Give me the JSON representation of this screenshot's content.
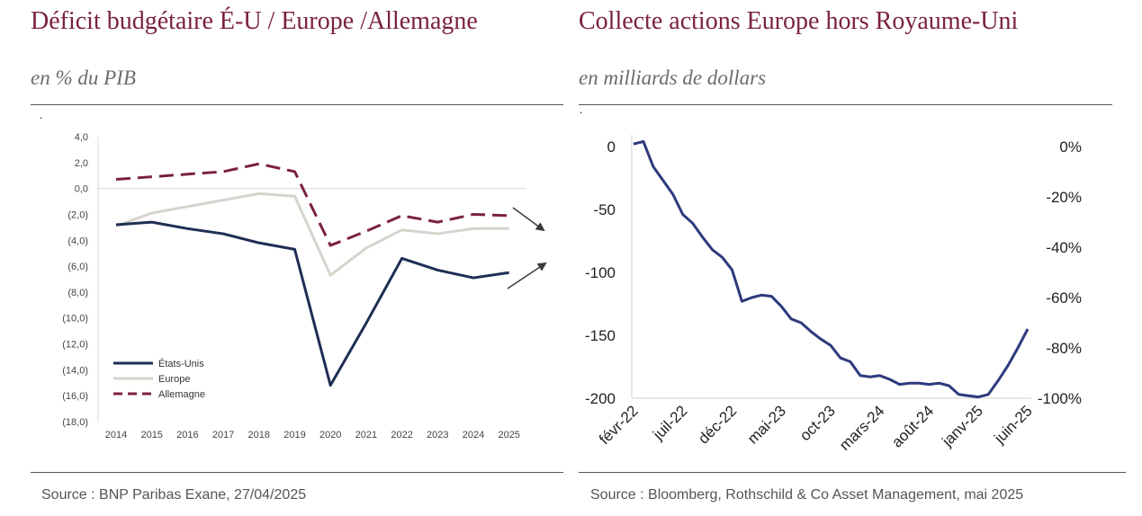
{
  "left": {
    "title": "Déficit budgétaire É-U / Europe /Allemagne",
    "subtitle": "en % du PIB",
    "source": "Source : BNP Paribas Exane, 27/04/2025",
    "chart_data": {
      "type": "line",
      "title": "Déficit budgétaire É-U / Europe /Allemagne",
      "subtitle": "en % du PIB",
      "x": [
        "2014",
        "2015",
        "2016",
        "2017",
        "2018",
        "2019",
        "2020",
        "2021",
        "2022",
        "2023",
        "2024",
        "2025"
      ],
      "yticks": [
        "4,0",
        "2,0",
        "0,0",
        "(2,0)",
        "(4,0)",
        "(6,0)",
        "(8,0)",
        "(10,0)",
        "(12,0)",
        "(14,0)",
        "(16,0)",
        "(18,0)"
      ],
      "ylim": [
        -18,
        4
      ],
      "legend_position": "bottom-left",
      "grid": false,
      "series": [
        {
          "name": "États-Unis",
          "color": "#1e2e54",
          "dash": false,
          "values": [
            -2.8,
            -2.6,
            -3.1,
            -3.5,
            -4.2,
            -4.7,
            -15.2,
            -10.4,
            -5.4,
            -6.3,
            -6.9,
            -6.5
          ]
        },
        {
          "name": "Europe",
          "color": "#d7d3cd",
          "dash": false,
          "values": [
            -2.9,
            -1.9,
            -1.4,
            -0.9,
            -0.4,
            -0.6,
            -6.7,
            -4.6,
            -3.2,
            -3.5,
            -3.1,
            -3.1
          ]
        },
        {
          "name": "Allemagne",
          "color": "#7a2140",
          "dash": true,
          "values": [
            0.7,
            0.9,
            1.1,
            1.3,
            1.9,
            1.3,
            -4.4,
            -3.3,
            -2.1,
            -2.6,
            -2.0,
            -2.1
          ]
        }
      ]
    }
  },
  "right": {
    "title": "Collecte actions Europe hors Royaume-Uni",
    "subtitle": "en milliards de dollars",
    "source": "Source : Bloomberg, Rothschild & Co Asset Management, mai 2025",
    "chart_data": {
      "type": "line",
      "title": "Collecte actions Europe hors Royaume-Uni",
      "subtitle": "en milliards de dollars",
      "x_labels": [
        "févr-22",
        "juil-22",
        "déc-22",
        "mai-23",
        "oct-23",
        "mars-24",
        "août-24",
        "janv-25",
        "juin-25"
      ],
      "ylim": [
        -200,
        0
      ],
      "yticks_left": [
        "0",
        "-50",
        "-100",
        "-150",
        "-200"
      ],
      "yticks_right": [
        "0%",
        "-20%",
        "-40%",
        "-60%",
        "-80%",
        "-100%"
      ],
      "grid": false,
      "series": [
        {
          "color": "#2e3a7d",
          "values": [
            2,
            4,
            -16,
            -27,
            -38,
            -54,
            -61,
            -72,
            -82,
            -88,
            -98,
            -123,
            -120,
            -118,
            -119,
            -127,
            -137,
            -140,
            -147,
            -153,
            -158,
            -168,
            -171,
            -182,
            -183,
            -182,
            -185,
            -189,
            -188,
            -188,
            -189,
            -188,
            -190,
            -197,
            -198,
            -199,
            -197,
            -186,
            -174,
            -160,
            -145
          ]
        }
      ]
    }
  }
}
